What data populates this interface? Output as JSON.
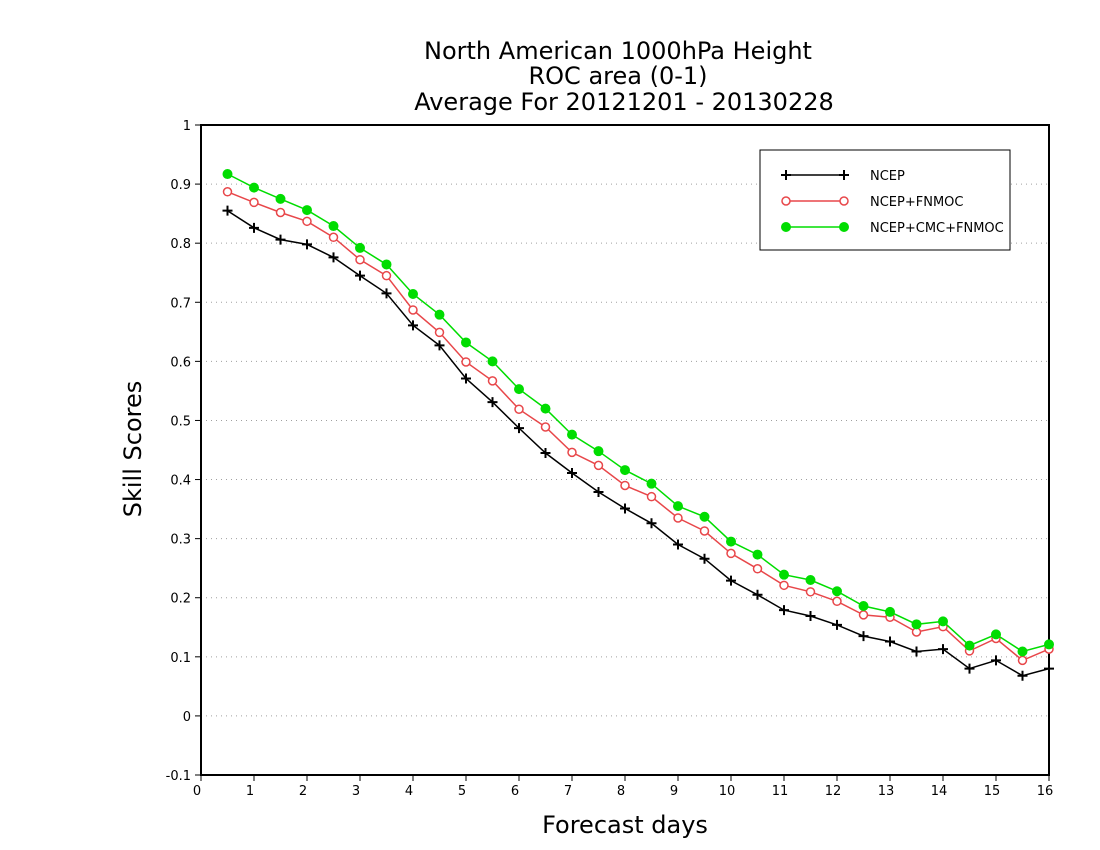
{
  "chart_data": {
    "type": "line",
    "title_lines": [
      "North American 1000hPa Height",
      "ROC area (0-1)",
      "Average For 20121201 - 20130228"
    ],
    "xlabel": "Forecast days",
    "ylabel": "Skill Scores",
    "xlim": [
      0,
      16
    ],
    "ylim": [
      -0.1,
      1
    ],
    "x_ticks": [
      "0",
      "1",
      "2",
      "3",
      "4",
      "5",
      "6",
      "7",
      "8",
      "9",
      "10",
      "11",
      "12",
      "13",
      "14",
      "15",
      "16"
    ],
    "y_ticks": [
      "-0.1",
      "0",
      "0.1",
      "0.2",
      "0.3",
      "0.4",
      "0.5",
      "0.6",
      "0.7",
      "0.8",
      "0.9",
      "1"
    ],
    "grid": true,
    "legend_position": "top-right",
    "x": [
      0.5,
      1,
      1.5,
      2,
      2.5,
      3,
      3.5,
      4,
      4.5,
      5,
      5.5,
      6,
      6.5,
      7,
      7.5,
      8,
      8.5,
      9,
      9.5,
      10,
      10.5,
      11,
      11.5,
      12,
      12.5,
      13,
      13.5,
      14,
      14.5,
      15,
      15.5,
      16
    ],
    "series": [
      {
        "name": "NCEP",
        "color": "#000000",
        "marker": "plus",
        "values": [
          0.855,
          0.826,
          0.806,
          0.798,
          0.776,
          0.745,
          0.715,
          0.661,
          0.627,
          0.571,
          0.531,
          0.487,
          0.445,
          0.411,
          0.379,
          0.351,
          0.326,
          0.29,
          0.266,
          0.229,
          0.205,
          0.179,
          0.169,
          0.154,
          0.135,
          0.126,
          0.109,
          0.113,
          0.08,
          0.094,
          0.068,
          0.08
        ]
      },
      {
        "name": "NCEP+FNMOC",
        "color": "#e8474a",
        "marker": "open-circle",
        "values": [
          0.887,
          0.869,
          0.852,
          0.837,
          0.81,
          0.772,
          0.745,
          0.687,
          0.649,
          0.599,
          0.567,
          0.519,
          0.489,
          0.446,
          0.424,
          0.39,
          0.371,
          0.335,
          0.313,
          0.275,
          0.249,
          0.221,
          0.21,
          0.194,
          0.171,
          0.167,
          0.142,
          0.151,
          0.11,
          0.131,
          0.094,
          0.113
        ]
      },
      {
        "name": "NCEP+CMC+FNMOC",
        "color": "#00dd00",
        "marker": "filled-circle",
        "values": [
          0.917,
          0.894,
          0.875,
          0.856,
          0.829,
          0.792,
          0.764,
          0.714,
          0.679,
          0.632,
          0.6,
          0.553,
          0.52,
          0.476,
          0.448,
          0.416,
          0.393,
          0.355,
          0.337,
          0.295,
          0.273,
          0.239,
          0.23,
          0.211,
          0.186,
          0.176,
          0.155,
          0.16,
          0.119,
          0.138,
          0.109,
          0.121
        ]
      }
    ]
  }
}
